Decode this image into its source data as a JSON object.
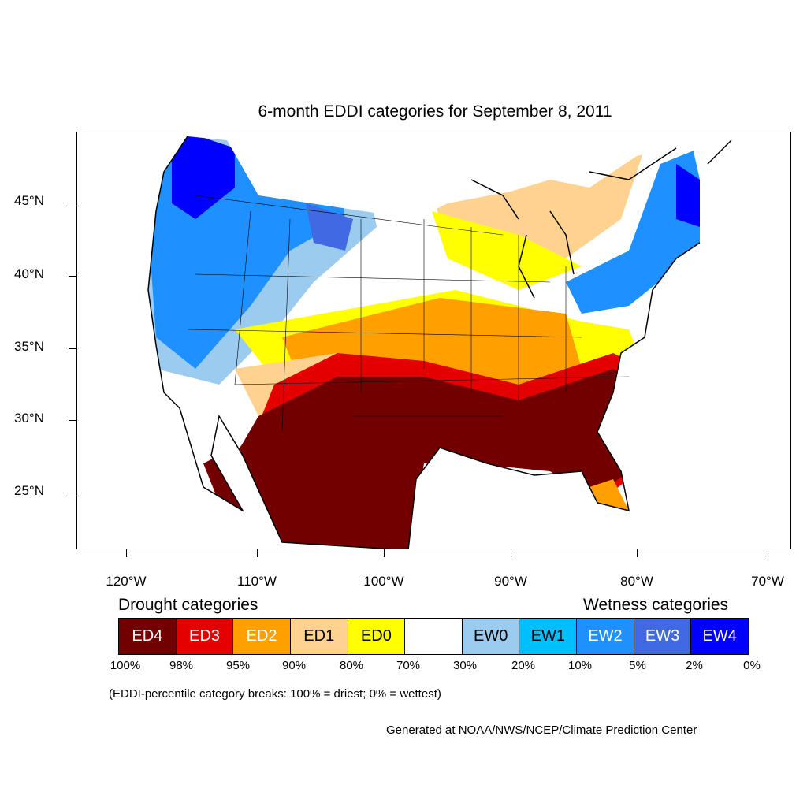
{
  "title": "6-month EDDI categories for September 8, 2011",
  "lat_labels": [
    "45°N",
    "40°N",
    "35°N",
    "30°N",
    "25°N"
  ],
  "lon_labels": [
    "120°W",
    "110°W",
    "100°W",
    "90°W",
    "80°W",
    "70°W"
  ],
  "legend": {
    "drought_title": "Drought categories",
    "wetness_title": "Wetness categories",
    "categories": [
      {
        "label": "ED4",
        "color": "#720000",
        "text_color": "#ffffff"
      },
      {
        "label": "ED3",
        "color": "#e50000",
        "text_color": "#ffffff"
      },
      {
        "label": "ED2",
        "color": "#ffa000",
        "text_color": "#ffffff"
      },
      {
        "label": "ED1",
        "color": "#ffd38f",
        "text_color": "#000000"
      },
      {
        "label": "ED0",
        "color": "#ffff00",
        "text_color": "#000000"
      },
      {
        "label": "",
        "color": "#ffffff",
        "text_color": "#000000"
      },
      {
        "label": "EW0",
        "color": "#9ccbf0",
        "text_color": "#000000"
      },
      {
        "label": "EW1",
        "color": "#00bfff",
        "text_color": "#000000"
      },
      {
        "label": "EW2",
        "color": "#1e90ff",
        "text_color": "#ffffff"
      },
      {
        "label": "EW3",
        "color": "#4169e1",
        "text_color": "#ffffff"
      },
      {
        "label": "EW4",
        "color": "#0000ff",
        "text_color": "#ffffff"
      }
    ],
    "breaks": [
      "100%",
      "98%",
      "95%",
      "90%",
      "80%",
      "70%",
      "30%",
      "20%",
      "10%",
      "5%",
      "2%",
      "0%"
    ]
  },
  "note": "(EDDI-percentile category breaks: 100% = driest; 0% = wettest)",
  "credit": "Generated at NOAA/NWS/NCEP/Climate Prediction Center"
}
